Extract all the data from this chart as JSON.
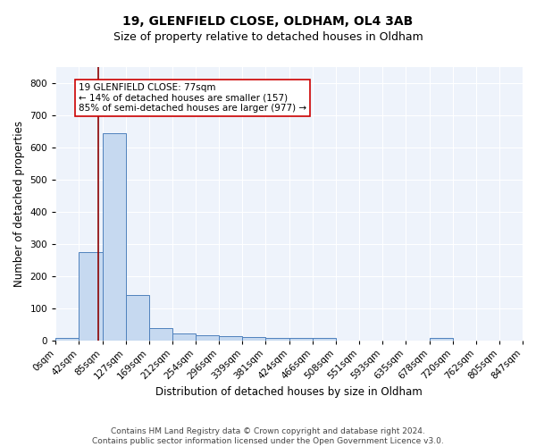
{
  "title_line1": "19, GLENFIELD CLOSE, OLDHAM, OL4 3AB",
  "title_line2": "Size of property relative to detached houses in Oldham",
  "xlabel": "Distribution of detached houses by size in Oldham",
  "ylabel": "Number of detached properties",
  "footer_line1": "Contains HM Land Registry data © Crown copyright and database right 2024.",
  "footer_line2": "Contains public sector information licensed under the Open Government Licence v3.0.",
  "bin_edges": [
    0,
    42,
    85,
    127,
    169,
    212,
    254,
    296,
    339,
    381,
    424,
    466,
    508,
    551,
    593,
    635,
    678,
    720,
    762,
    805,
    847
  ],
  "bin_labels": [
    "0sqm",
    "42sqm",
    "85sqm",
    "127sqm",
    "169sqm",
    "212sqm",
    "254sqm",
    "296sqm",
    "339sqm",
    "381sqm",
    "424sqm",
    "466sqm",
    "508sqm",
    "551sqm",
    "593sqm",
    "635sqm",
    "678sqm",
    "720sqm",
    "762sqm",
    "805sqm",
    "847sqm"
  ],
  "bar_heights": [
    8,
    275,
    645,
    140,
    38,
    20,
    15,
    13,
    11,
    8,
    7,
    6,
    0,
    0,
    0,
    0,
    7,
    0,
    0,
    0
  ],
  "bar_color": "#c6d9f0",
  "bar_edge_color": "#4f81bd",
  "property_line_x": 77,
  "property_line_color": "#8b0000",
  "annotation_text": "19 GLENFIELD CLOSE: 77sqm\n← 14% of detached houses are smaller (157)\n85% of semi-detached houses are larger (977) →",
  "annotation_box_color": "white",
  "annotation_box_edge_color": "#cc0000",
  "ylim": [
    0,
    850
  ],
  "background_color": "#eef3fb",
  "grid_color": "white",
  "title_fontsize": 10,
  "subtitle_fontsize": 9,
  "axis_label_fontsize": 8.5,
  "tick_fontsize": 7.5,
  "footer_fontsize": 6.5,
  "annotation_fontsize": 7.5
}
